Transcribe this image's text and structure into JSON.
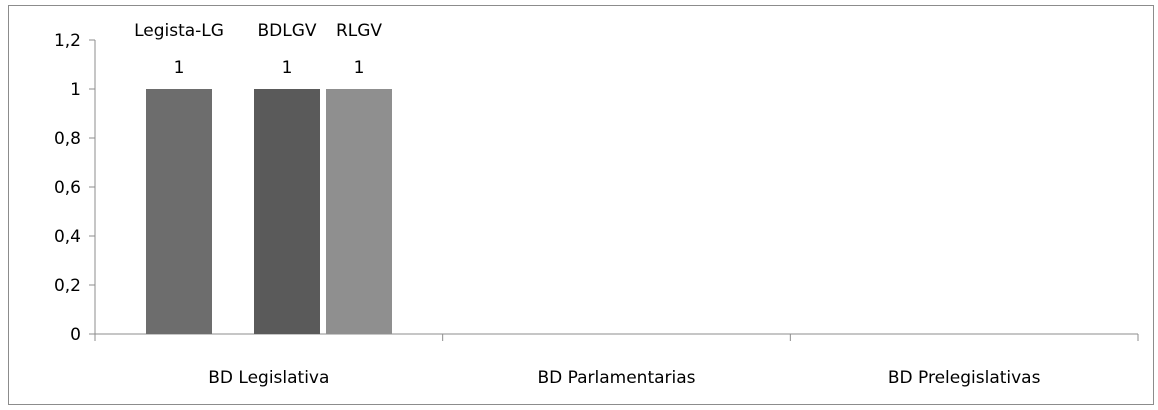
{
  "chart_data": {
    "type": "bar",
    "categories": [
      "BD Legislativa",
      "BD Parlamentarias",
      "BD Prelegislativas"
    ],
    "y_ticks": [
      "0",
      "0,2",
      "0,4",
      "0,6",
      "0,8",
      "1",
      "1,2"
    ],
    "ylim": [
      0,
      1.2
    ],
    "grid": false,
    "legend": "none",
    "series": [
      {
        "label": "Legista-LG",
        "values": [
          1,
          null,
          null
        ],
        "data_labels": [
          "1",
          "",
          ""
        ],
        "color": "#6d6d6d"
      },
      {
        "label": "BDLGV",
        "values": [
          1,
          null,
          null
        ],
        "data_labels": [
          "1",
          "",
          ""
        ],
        "color": "#5a5a5a"
      },
      {
        "label": "RLGV",
        "values": [
          1,
          null,
          null
        ],
        "data_labels": [
          "1",
          "",
          ""
        ],
        "color": "#8f8f8f"
      }
    ]
  }
}
